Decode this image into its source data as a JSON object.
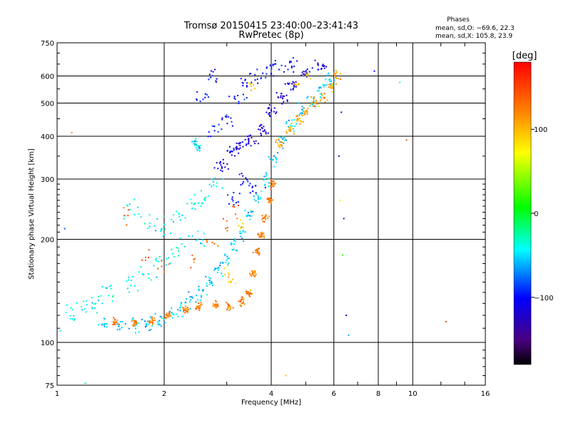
{
  "chart_data": {
    "type": "scatter",
    "title_line1": "Tromsø 20150415 23:40:00–23:41:43",
    "title_line2": "RwPretec (8p)",
    "xlabel": "Frequency [MHz]",
    "ylabel": "Stationary phase Virtual Height [km]",
    "xscale": "log",
    "yscale": "log",
    "xlim": [
      1,
      16
    ],
    "ylim": [
      75,
      750
    ],
    "grid": true,
    "xticks": [
      1,
      2,
      4,
      6,
      8,
      10,
      16
    ],
    "xtick_labels": [
      "1",
      "2",
      "4",
      "6",
      "8",
      "10",
      "16"
    ],
    "yticks": [
      75,
      100,
      200,
      300,
      400,
      500,
      600,
      750
    ],
    "ytick_labels": [
      "75",
      "100",
      "200",
      "300",
      "400",
      "500",
      "600",
      "750"
    ],
    "stats": {
      "title": "Phases",
      "line_o": "mean, sd,O: −69.6, 22.3",
      "line_x": "mean, sd,X: 105.8, 23.9"
    },
    "colorbar": {
      "label": "[deg]",
      "range": [
        -180,
        180
      ],
      "ticks": [
        100,
        0,
        -100
      ],
      "tick_labels": [
        "100",
        "0",
        "−100"
      ],
      "palette": "rainbow"
    },
    "clusters": [
      {
        "name": "low-trace-O",
        "points": [
          [
            1.35,
            113
          ],
          [
            1.5,
            112
          ],
          [
            1.65,
            112
          ],
          [
            1.8,
            113
          ],
          [
            1.95,
            116
          ],
          [
            2.1,
            120
          ],
          [
            2.25,
            126
          ],
          [
            2.4,
            133
          ],
          [
            2.55,
            140
          ],
          [
            2.7,
            150
          ],
          [
            2.85,
            162
          ],
          [
            3.0,
            175
          ],
          [
            3.15,
            190
          ],
          [
            3.3,
            210
          ],
          [
            3.5,
            235
          ],
          [
            3.7,
            265
          ],
          [
            3.9,
            300
          ],
          [
            4.1,
            340
          ],
          [
            4.35,
            385
          ],
          [
            4.6,
            430
          ],
          [
            4.9,
            470
          ],
          [
            5.2,
            500
          ],
          [
            5.5,
            540
          ],
          [
            5.8,
            580
          ]
        ],
        "phase": -55,
        "spread_f": 0.05,
        "spread_h": 0.07,
        "n_per_point": 12
      },
      {
        "name": "low-trace-X",
        "points": [
          [
            1.45,
            115
          ],
          [
            1.65,
            114
          ],
          [
            1.85,
            116
          ],
          [
            2.05,
            120
          ],
          [
            2.3,
            124
          ],
          [
            2.5,
            127
          ],
          [
            2.8,
            128
          ],
          [
            3.05,
            128
          ],
          [
            3.3,
            132
          ],
          [
            3.45,
            140
          ],
          [
            3.55,
            160
          ],
          [
            3.65,
            185
          ],
          [
            3.75,
            205
          ],
          [
            3.85,
            230
          ],
          [
            3.95,
            260
          ],
          [
            4.05,
            290
          ]
        ],
        "phase": 125,
        "spread_f": 0.03,
        "spread_h": 0.04,
        "n_per_point": 18
      },
      {
        "name": "upper-trace-X",
        "points": [
          [
            4.2,
            380
          ],
          [
            4.5,
            420
          ],
          [
            4.8,
            450
          ],
          [
            5.0,
            470
          ],
          [
            5.3,
            500
          ],
          [
            5.6,
            520
          ],
          [
            5.9,
            560
          ],
          [
            6.1,
            600
          ]
        ],
        "phase": 110,
        "spread_f": 0.04,
        "spread_h": 0.05,
        "n_per_point": 14
      },
      {
        "name": "F-layer-O-core",
        "points": [
          [
            2.9,
            330
          ],
          [
            3.1,
            360
          ],
          [
            3.3,
            380
          ],
          [
            3.5,
            390
          ],
          [
            3.8,
            420
          ],
          [
            4.0,
            470
          ],
          [
            4.3,
            520
          ],
          [
            4.6,
            560
          ],
          [
            5.0,
            610
          ],
          [
            5.5,
            640
          ]
        ],
        "phase": -115,
        "spread_f": 0.06,
        "spread_h": 0.06,
        "n_per_point": 16
      },
      {
        "name": "mid-O-spread",
        "points": [
          [
            1.6,
            240
          ],
          [
            1.8,
            220
          ],
          [
            2.0,
            215
          ],
          [
            2.2,
            230
          ],
          [
            2.4,
            250
          ],
          [
            2.6,
            260
          ],
          [
            2.8,
            280
          ],
          [
            2.5,
            200
          ],
          [
            2.2,
            190
          ],
          [
            2.0,
            175
          ],
          [
            1.8,
            160
          ],
          [
            1.6,
            150
          ],
          [
            1.4,
            140
          ],
          [
            1.3,
            130
          ],
          [
            1.2,
            125
          ],
          [
            1.1,
            120
          ]
        ],
        "phase": -40,
        "spread_f": 0.08,
        "spread_h": 0.1,
        "n_per_point": 10
      },
      {
        "name": "mid-X-spread",
        "points": [
          [
            1.6,
            235
          ],
          [
            1.8,
            180
          ],
          [
            2.0,
            170
          ],
          [
            2.4,
            175
          ],
          [
            2.7,
            190
          ],
          [
            3.0,
            220
          ],
          [
            3.2,
            240
          ]
        ],
        "phase": 135,
        "spread_f": 0.07,
        "spread_h": 0.08,
        "n_per_point": 5
      },
      {
        "name": "high-blue-region",
        "points": [
          [
            3.0,
            450
          ],
          [
            3.2,
            520
          ],
          [
            3.4,
            570
          ],
          [
            3.6,
            600
          ],
          [
            3.9,
            620
          ],
          [
            4.2,
            640
          ],
          [
            4.6,
            650
          ],
          [
            2.8,
            600
          ],
          [
            2.6,
            520
          ],
          [
            2.8,
            420
          ],
          [
            3.3,
            300
          ],
          [
            3.6,
            280
          ],
          [
            3.1,
            260
          ]
        ],
        "phase": -100,
        "spread_f": 0.08,
        "spread_h": 0.08,
        "n_per_point": 10
      },
      {
        "name": "blob-390",
        "points": [
          [
            2.45,
            385
          ],
          [
            2.5,
            370
          ]
        ],
        "phase": -50,
        "spread_f": 0.03,
        "spread_h": 0.04,
        "n_per_point": 12
      },
      {
        "name": "yellow-accents",
        "points": [
          [
            3.0,
            160
          ],
          [
            3.1,
            150
          ],
          [
            4.7,
            570
          ],
          [
            5.1,
            600
          ],
          [
            3.5,
            560
          ],
          [
            3.3,
            220
          ]
        ],
        "phase": 95,
        "spread_f": 0.04,
        "spread_h": 0.05,
        "n_per_point": 6
      }
    ],
    "outliers": [
      [
        1.05,
        215
      ],
      [
        1.1,
        410
      ],
      [
        1.02,
        108
      ],
      [
        6.2,
        350
      ],
      [
        6.3,
        470
      ],
      [
        6.5,
        120
      ],
      [
        6.6,
        105
      ],
      [
        6.4,
        230
      ],
      [
        7.8,
        620
      ],
      [
        9.2,
        575
      ],
      [
        9.6,
        390
      ],
      [
        12.4,
        115
      ],
      [
        4.4,
        80
      ],
      [
        6.25,
        260
      ],
      [
        6.35,
        180
      ],
      [
        1.2,
        76
      ]
    ],
    "outlier_phases": [
      -80,
      120,
      -40,
      -120,
      -110,
      -130,
      -60,
      -140,
      -100,
      -30,
      140,
      150,
      100,
      80,
      20,
      -20
    ]
  }
}
